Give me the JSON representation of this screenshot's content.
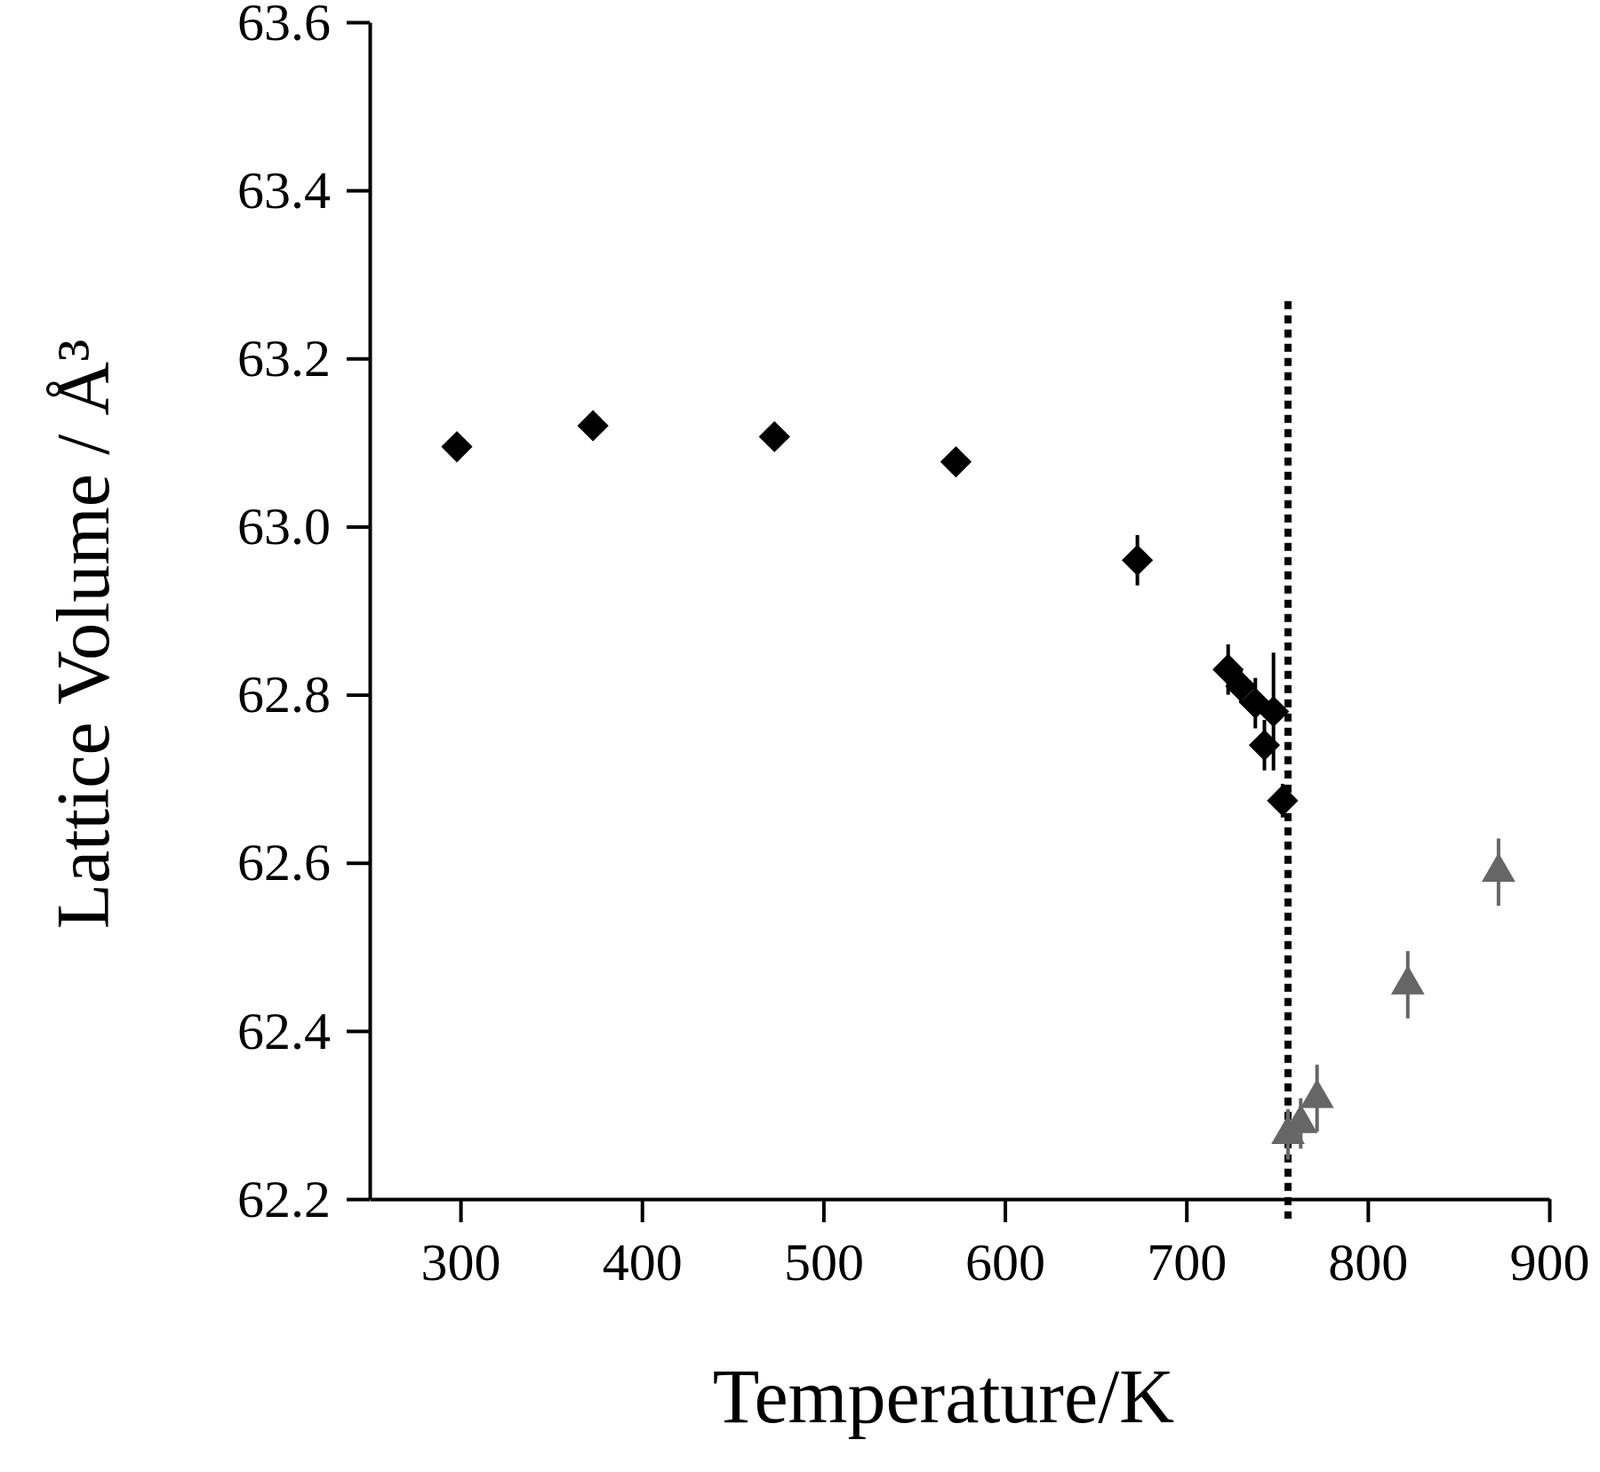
{
  "chart_data": {
    "type": "scatter",
    "x_label": "Temperature/K",
    "y_label": "Lattice Volume / Å³",
    "xlim": [
      250,
      900
    ],
    "xticks": [
      300,
      400,
      500,
      600,
      700,
      800,
      900
    ],
    "ylim": [
      62.2,
      63.6
    ],
    "yticks": [
      62.2,
      62.4,
      62.6,
      62.8,
      {
        "value": 63.0,
        "label": "63.0"
      },
      63.2,
      63.4,
      63.6
    ],
    "grid": false,
    "reference_line_x": 756,
    "series": [
      {
        "color": "#000000",
        "marker": "diamond",
        "x": [
          298,
          373,
          473,
          573,
          673,
          723,
          730,
          738,
          743,
          748,
          753
        ],
        "values": [
          63.095,
          63.12,
          63.107,
          63.077,
          62.96,
          62.83,
          62.81,
          62.79,
          62.74,
          62.78,
          62.674
        ],
        "errors": [
          0.01,
          0.01,
          0.01,
          0.01,
          0.03,
          0.03,
          0.02,
          0.03,
          0.03,
          0.07,
          0.02
        ]
      },
      {
        "color": "#666666",
        "marker": "triangle",
        "x": [
          756,
          763,
          772,
          822,
          872
        ],
        "values": [
          62.277,
          62.29,
          62.32,
          62.455,
          62.589
        ],
        "errors": [
          0.03,
          0.03,
          0.04,
          0.04,
          0.04
        ]
      }
    ]
  }
}
